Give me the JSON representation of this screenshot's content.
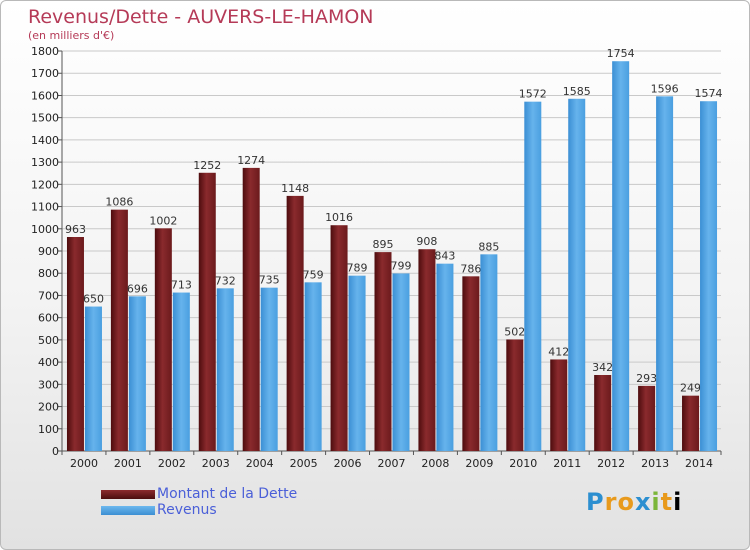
{
  "chart_data": {
    "type": "bar",
    "title": "Revenus/Dette - AUVERS-LE-HAMON",
    "subtitle": "(en milliers d'€)",
    "categories": [
      "2000",
      "2001",
      "2002",
      "2003",
      "2004",
      "2005",
      "2006",
      "2007",
      "2008",
      "2009",
      "2010",
      "2011",
      "2012",
      "2013",
      "2014"
    ],
    "series": [
      {
        "name": "Montant de la Dette",
        "color": "#7a1f22",
        "values": [
          963,
          1086,
          1002,
          1252,
          1274,
          1148,
          1016,
          895,
          908,
          786,
          502,
          412,
          342,
          293,
          249
        ]
      },
      {
        "name": "Revenus",
        "color": "#4fa3e4",
        "values": [
          650,
          696,
          713,
          732,
          735,
          759,
          789,
          799,
          843,
          885,
          1572,
          1585,
          1754,
          1596,
          1574
        ]
      }
    ],
    "ylim": [
      0,
      1800
    ],
    "yticks": [
      0,
      100,
      200,
      300,
      400,
      500,
      600,
      700,
      800,
      900,
      1000,
      1100,
      1200,
      1300,
      1400,
      1500,
      1600,
      1700,
      1800
    ],
    "grid": true,
    "legend": "bottom-left"
  },
  "logo_text": "Proxiti"
}
